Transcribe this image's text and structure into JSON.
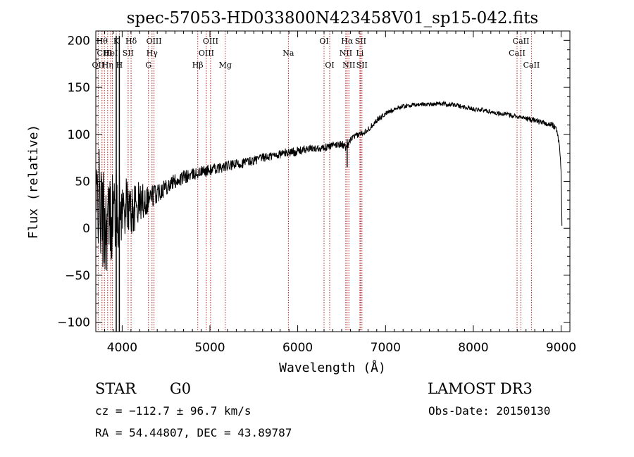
{
  "chart_data": {
    "type": "line",
    "title": "spec-57053-HD033800N423458V01_sp15-042.fits",
    "xlabel": "Wavelength (Å)",
    "ylabel": "Flux (relative)",
    "xlim": [
      3700,
      9100
    ],
    "ylim": [
      -110,
      210
    ],
    "x_ticks": [
      4000,
      5000,
      6000,
      7000,
      8000,
      9000
    ],
    "x_tick_labels": [
      "4000",
      "5000",
      "6000",
      "7000",
      "8000",
      "9000"
    ],
    "y_ticks": [
      -100,
      -50,
      0,
      50,
      100,
      150,
      200
    ],
    "y_tick_labels": [
      "−100",
      "−50",
      "0",
      "50",
      "100",
      "150",
      "200"
    ],
    "grid": false,
    "series": [
      {
        "name": "spectrum",
        "x": [
          3700,
          3720,
          3760,
          3800,
          3860,
          3920,
          3960,
          4000,
          4050,
          4100,
          4150,
          4200,
          4250,
          4300,
          4350,
          4400,
          4450,
          4500,
          4600,
          4700,
          4800,
          4900,
          5000,
          5100,
          5200,
          5300,
          5400,
          5500,
          5600,
          5700,
          5800,
          5900,
          6000,
          6100,
          6200,
          6300,
          6400,
          6500,
          6560,
          6600,
          6700,
          6800,
          6900,
          7000,
          7100,
          7200,
          7300,
          7400,
          7500,
          7600,
          7700,
          7800,
          7900,
          8000,
          8100,
          8200,
          8300,
          8400,
          8500,
          8600,
          8700,
          8800,
          8900,
          8950,
          8980,
          9000,
          9010
        ],
        "y": [
          10,
          40,
          15,
          5,
          10,
          20,
          18,
          20,
          25,
          18,
          22,
          28,
          30,
          32,
          35,
          38,
          42,
          45,
          50,
          54,
          57,
          60,
          62,
          64,
          66,
          68,
          70,
          72,
          75,
          77,
          79,
          81,
          82,
          84,
          85,
          86,
          88,
          90,
          85,
          95,
          100,
          105,
          115,
          122,
          127,
          130,
          131,
          132,
          132,
          133,
          132,
          131,
          129,
          127,
          126,
          124,
          122,
          121,
          119,
          117,
          115,
          112,
          110,
          105,
          90,
          60,
          0
        ],
        "noise": [
          30,
          35,
          35,
          35,
          30,
          30,
          25,
          20,
          18,
          18,
          16,
          14,
          12,
          10,
          8,
          7,
          7,
          6,
          5,
          5,
          4,
          4,
          4,
          3.5,
          3.5,
          3.5,
          3.5,
          3,
          3,
          3,
          3,
          3,
          3,
          2.5,
          2.5,
          2.5,
          2.5,
          2.5,
          2.5,
          2,
          2,
          2,
          2,
          1.5,
          1.5,
          1.5,
          1.5,
          1.5,
          1.5,
          1.5,
          1.5,
          1.5,
          1.5,
          1.5,
          1.5,
          1.5,
          1.5,
          1.5,
          1.5,
          1.5,
          2,
          2,
          2,
          2,
          2,
          2,
          2
        ]
      }
    ],
    "spikes": [
      {
        "x": 3933,
        "y0": -110,
        "y1": 205
      },
      {
        "x": 3968,
        "y0": -110,
        "y1": 205
      },
      {
        "x": 6563,
        "y0": 65,
        "y1": 95
      }
    ],
    "line_markers": [
      {
        "x": 3727,
        "label": "OII",
        "row": 3
      },
      {
        "x": 3771,
        "label": "Hθ",
        "row": 1
      },
      {
        "x": 3798,
        "label": "CIII",
        "row": 2
      },
      {
        "x": 3835,
        "label": "Hη",
        "row": 3
      },
      {
        "x": 3869,
        "label": "HeI",
        "row": 2
      },
      {
        "x": 3889,
        "label": "",
        "row": 0
      },
      {
        "x": 3933,
        "label": "K",
        "row": 1
      },
      {
        "x": 3968,
        "label": "H",
        "row": 3
      },
      {
        "x": 4068,
        "label": "SII",
        "row": 2
      },
      {
        "x": 4102,
        "label": "Hδ",
        "row": 1
      },
      {
        "x": 4300,
        "label": "G",
        "row": 3
      },
      {
        "x": 4340,
        "label": "Hγ",
        "row": 2
      },
      {
        "x": 4363,
        "label": "OIII",
        "row": 1
      },
      {
        "x": 4861,
        "label": "Hβ",
        "row": 3
      },
      {
        "x": 4959,
        "label": "OIII",
        "row": 2
      },
      {
        "x": 5007,
        "label": "OIII",
        "row": 1
      },
      {
        "x": 5175,
        "label": "Mg",
        "row": 3
      },
      {
        "x": 5894,
        "label": "Na",
        "row": 2
      },
      {
        "x": 6300,
        "label": "OI",
        "row": 1
      },
      {
        "x": 6364,
        "label": "OI",
        "row": 3
      },
      {
        "x": 6548,
        "label": "NII",
        "row": 2
      },
      {
        "x": 6563,
        "label": "Hα",
        "row": 1
      },
      {
        "x": 6583,
        "label": "NII",
        "row": 3
      },
      {
        "x": 6708,
        "label": "Li",
        "row": 2
      },
      {
        "x": 6716,
        "label": "SII",
        "row": 1
      },
      {
        "x": 6731,
        "label": "SII",
        "row": 3
      },
      {
        "x": 8498,
        "label": "CaII",
        "row": 2
      },
      {
        "x": 8542,
        "label": "CaII",
        "row": 1
      },
      {
        "x": 8662,
        "label": "CaII",
        "row": 3
      }
    ]
  },
  "info": {
    "object_class": "STAR",
    "subclass": "G0",
    "survey": "LAMOST DR3",
    "cz": "cz = −112.7 ± 96.7 km/s",
    "obs_date": "Obs-Date: 20150130",
    "coords": "RA =  54.44807, DEC =  43.89787"
  },
  "colors": {
    "spectrum": "#000000",
    "marker": "#b22222",
    "axis": "#000000"
  }
}
